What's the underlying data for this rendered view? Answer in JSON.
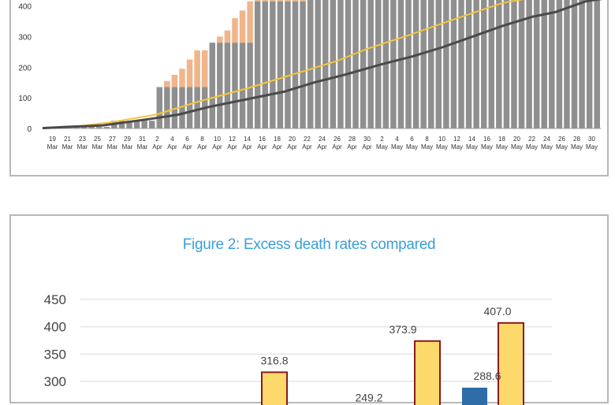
{
  "chart_data": [
    {
      "type": "bar",
      "title": "",
      "xlabel": "",
      "ylabel": "",
      "ylim": [
        0,
        440
      ],
      "yticks": [
        0,
        100,
        200,
        300,
        400
      ],
      "grid": false,
      "x_tick_labels": [
        [
          "19",
          "Mar"
        ],
        [
          "21",
          "Mar"
        ],
        [
          "23",
          "Mar"
        ],
        [
          "25",
          "Mar"
        ],
        [
          "27",
          "Mar"
        ],
        [
          "29",
          "Mar"
        ],
        [
          "31",
          "Mar"
        ],
        [
          "2",
          "Apr"
        ],
        [
          "4",
          "Apr"
        ],
        [
          "6",
          "Apr"
        ],
        [
          "8",
          "Apr"
        ],
        [
          "10",
          "Apr"
        ],
        [
          "12",
          "Apr"
        ],
        [
          "14",
          "Apr"
        ],
        [
          "16",
          "Apr"
        ],
        [
          "18",
          "Apr"
        ],
        [
          "20",
          "Apr"
        ],
        [
          "22",
          "Apr"
        ],
        [
          "24",
          "Apr"
        ],
        [
          "26",
          "Apr"
        ],
        [
          "28",
          "Apr"
        ],
        [
          "30",
          "Apr"
        ],
        [
          "2",
          "May"
        ],
        [
          "4",
          "May"
        ],
        [
          "6",
          "May"
        ],
        [
          "8",
          "May"
        ],
        [
          "10",
          "May"
        ],
        [
          "12",
          "May"
        ],
        [
          "14",
          "May"
        ],
        [
          "16",
          "May"
        ],
        [
          "18",
          "May"
        ],
        [
          "20",
          "May"
        ],
        [
          "22",
          "May"
        ],
        [
          "24",
          "May"
        ],
        [
          "26",
          "May"
        ],
        [
          "28",
          "May"
        ],
        [
          "30",
          "May"
        ]
      ],
      "series": [
        {
          "kind": "bar",
          "color": "#8f8f8f",
          "values": [
            2,
            2,
            2,
            5,
            5,
            5,
            5,
            5,
            5,
            25,
            25,
            25,
            25,
            25,
            25,
            135,
            135,
            135,
            135,
            135,
            135,
            135,
            280,
            280,
            280,
            280,
            280,
            280,
            415,
            415,
            415,
            415,
            415,
            415,
            415,
            440,
            440,
            440,
            440,
            440,
            440,
            440,
            440,
            440,
            440,
            440,
            440,
            440,
            440,
            440,
            440,
            440,
            440,
            440,
            440,
            440,
            440,
            440,
            440,
            440,
            440,
            440,
            440,
            440,
            440,
            440,
            440,
            440,
            440,
            440,
            440,
            440,
            440,
            440
          ]
        },
        {
          "kind": "bar-top",
          "color": "#f0b58a",
          "values": [
            2,
            2,
            2,
            5,
            5,
            5,
            5,
            5,
            5,
            25,
            25,
            25,
            25,
            25,
            25,
            135,
            155,
            175,
            195,
            225,
            255,
            255,
            280,
            300,
            320,
            360,
            385,
            415,
            440,
            440,
            440,
            440,
            440,
            440,
            440,
            440,
            440,
            440,
            440,
            440,
            440,
            440,
            440,
            440,
            440,
            440,
            440,
            440,
            440,
            440,
            440,
            440,
            440,
            440,
            440,
            440,
            440,
            440,
            440,
            440,
            440,
            440,
            440,
            440,
            440,
            440,
            440,
            440,
            440,
            440,
            440,
            440,
            440,
            440
          ]
        },
        {
          "kind": "line",
          "color": "#f3c53c",
          "values": [
            null,
            null,
            null,
            null,
            null,
            null,
            null,
            null,
            null,
            null,
            null,
            null,
            null,
            null,
            null,
            null,
            null,
            null,
            null,
            null,
            null,
            null,
            null,
            null,
            null,
            null,
            null,
            null,
            null,
            null,
            null,
            null,
            null,
            null,
            null,
            null,
            null,
            null,
            null,
            null,
            null,
            null,
            null,
            null,
            null,
            null,
            null,
            null,
            null,
            null,
            null,
            null,
            null,
            null,
            null,
            null,
            null,
            null,
            null,
            null,
            null,
            null,
            null,
            null,
            null,
            null,
            null,
            null,
            null,
            null,
            null,
            null,
            null,
            null
          ]
        },
        {
          "kind": "line",
          "color": "#4a4a4a",
          "values": [
            null,
            null,
            null,
            null,
            null,
            null,
            null,
            null,
            null,
            null,
            null,
            null,
            null,
            null,
            null,
            null,
            null,
            null,
            null,
            null,
            null,
            null,
            null,
            null,
            null,
            null,
            null,
            null,
            null,
            null,
            null,
            null,
            null,
            null,
            null,
            null,
            null,
            null,
            null,
            null,
            null,
            null,
            null,
            null,
            null,
            null,
            null,
            null,
            null,
            null,
            null,
            null,
            null,
            null,
            null,
            null,
            null,
            null,
            null,
            null,
            null,
            null,
            null,
            null,
            null,
            null,
            null,
            null,
            null,
            null,
            null,
            null,
            null,
            null
          ]
        }
      ],
      "line_points": {
        "yellow": [
          [
            0,
            2
          ],
          [
            4,
            5
          ],
          [
            9,
            20
          ],
          [
            15,
            45
          ],
          [
            21,
            90
          ],
          [
            27,
            130
          ],
          [
            33,
            175
          ],
          [
            39,
            220
          ],
          [
            43,
            260
          ],
          [
            48,
            300
          ],
          [
            55,
            360
          ],
          [
            61,
            410
          ],
          [
            68,
            440
          ]
        ],
        "dark": [
          [
            0,
            1
          ],
          [
            3,
            5
          ],
          [
            8,
            10
          ],
          [
            14,
            30
          ],
          [
            18,
            45
          ],
          [
            22,
            70
          ],
          [
            27,
            95
          ],
          [
            32,
            120
          ],
          [
            36,
            150
          ],
          [
            40,
            175
          ],
          [
            45,
            210
          ],
          [
            49,
            235
          ],
          [
            53,
            265
          ],
          [
            57,
            300
          ],
          [
            61,
            335
          ],
          [
            65,
            365
          ],
          [
            68,
            380
          ],
          [
            72,
            415
          ],
          [
            76,
            430
          ],
          [
            80,
            440
          ]
        ]
      }
    },
    {
      "type": "bar",
      "title": "Figure 2: Excess death rates compared",
      "xlabel": "",
      "ylabel": "",
      "ylim": [
        250,
        450
      ],
      "yticks": [
        300,
        350,
        400,
        450
      ],
      "grid": true,
      "data_labels": [
        {
          "series": "yellow",
          "group": 0,
          "value": 316.8,
          "text": "316.8"
        },
        {
          "series": "yellow",
          "group": 1,
          "value": 373.9,
          "text": "373.9"
        },
        {
          "series": "yellow",
          "group": 2,
          "value": 407.0,
          "text": "407.0"
        },
        {
          "series": "blue",
          "group": 1,
          "value": 249.2,
          "text": "249.2"
        },
        {
          "series": "blue",
          "group": 2,
          "value": 288.6,
          "text": "288.6"
        }
      ],
      "series": [
        {
          "color": "#2e6ca8",
          "values": [
            null,
            249.2,
            288.6
          ]
        },
        {
          "color": "#fdd96b",
          "values": [
            316.8,
            373.9,
            407.0
          ]
        }
      ]
    }
  ],
  "figure2": {
    "title": "Figure 2: Excess death rates compared"
  }
}
